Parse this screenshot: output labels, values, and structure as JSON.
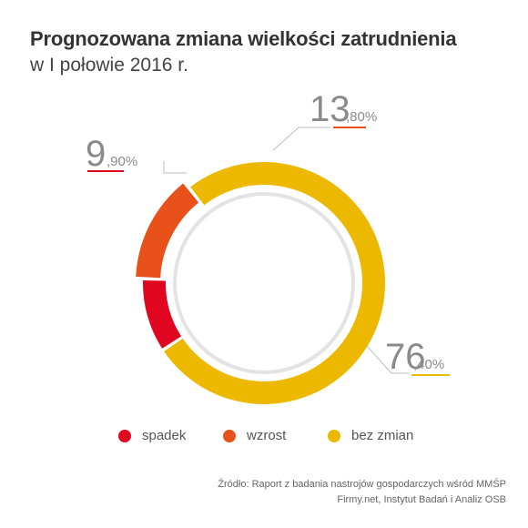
{
  "title": "Prognozowana zmiana wielkości zatrudnienia",
  "subtitle": "w I połowie 2016 r.",
  "chart_data": {
    "type": "pie",
    "variant": "donut",
    "series": [
      {
        "name": "spadek",
        "value": 9.9,
        "int_label": "9",
        "dec_label": ",90%",
        "color": "#e0061f"
      },
      {
        "name": "wzrost",
        "value": 13.8,
        "int_label": "13",
        "dec_label": ",80%",
        "color": "#e8521a"
      },
      {
        "name": "bez zmian",
        "value": 76.4,
        "int_label": "76",
        "dec_label": ",40%",
        "color": "#ecb900"
      }
    ],
    "legend_position": "bottom"
  },
  "legend": [
    {
      "label": "spadek",
      "color": "#e0061f"
    },
    {
      "label": "wzrost",
      "color": "#e8521a"
    },
    {
      "label": "bez zmian",
      "color": "#ecb900"
    }
  ],
  "source": {
    "line1": "Źródło: Raport z badania nastrojów gospodarczych wśród MMŚP",
    "line2": "Firmy.net, Instytut Badań i Analiz OSB"
  }
}
